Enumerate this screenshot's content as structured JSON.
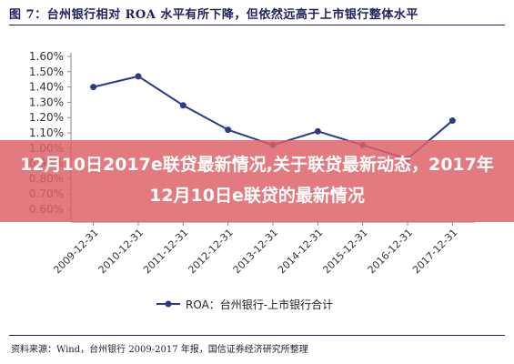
{
  "figure_title": "图 7：台州银行相对 ROA 水平有所下降，但依然远高于上市银行整体水平",
  "source_note": "资料来源：Wind，台州银行 2009-2017 年报，国信证券经济研究所整理",
  "headline": "12月10日2017e联贷最新情况,关于联贷最新动态，2017年12月10日e联贷的最新情况",
  "colors": {
    "series": "#2b3a8a",
    "axis": "#888888",
    "title": "#1f1f5c",
    "overlay": "#de6168"
  },
  "chart_data": {
    "type": "line",
    "title": "",
    "xlabel": "",
    "ylabel": "",
    "ylim": [
      0.0,
      1.6
    ],
    "grid": false,
    "legend_position": "bottom-center",
    "y_ticks": [
      "1.60%",
      "1.50%",
      "1.40%",
      "1.30%",
      "1.20%",
      "1.10%",
      "1.00%",
      "0.90%",
      "0.80%",
      "0.70%",
      "0.60%"
    ],
    "categories": [
      "2009-12-31",
      "2010-12-31",
      "2011-12-31",
      "2012-12-31",
      "2013-12-31",
      "2014-12-31",
      "2015-12-31",
      "2016-12-31",
      "2017-12-31"
    ],
    "series": [
      {
        "name": "ROA：台州银行-上市银行合计",
        "values": [
          1.4,
          1.47,
          1.28,
          1.12,
          1.02,
          1.11,
          1.02,
          0.93,
          1.18
        ]
      }
    ]
  }
}
